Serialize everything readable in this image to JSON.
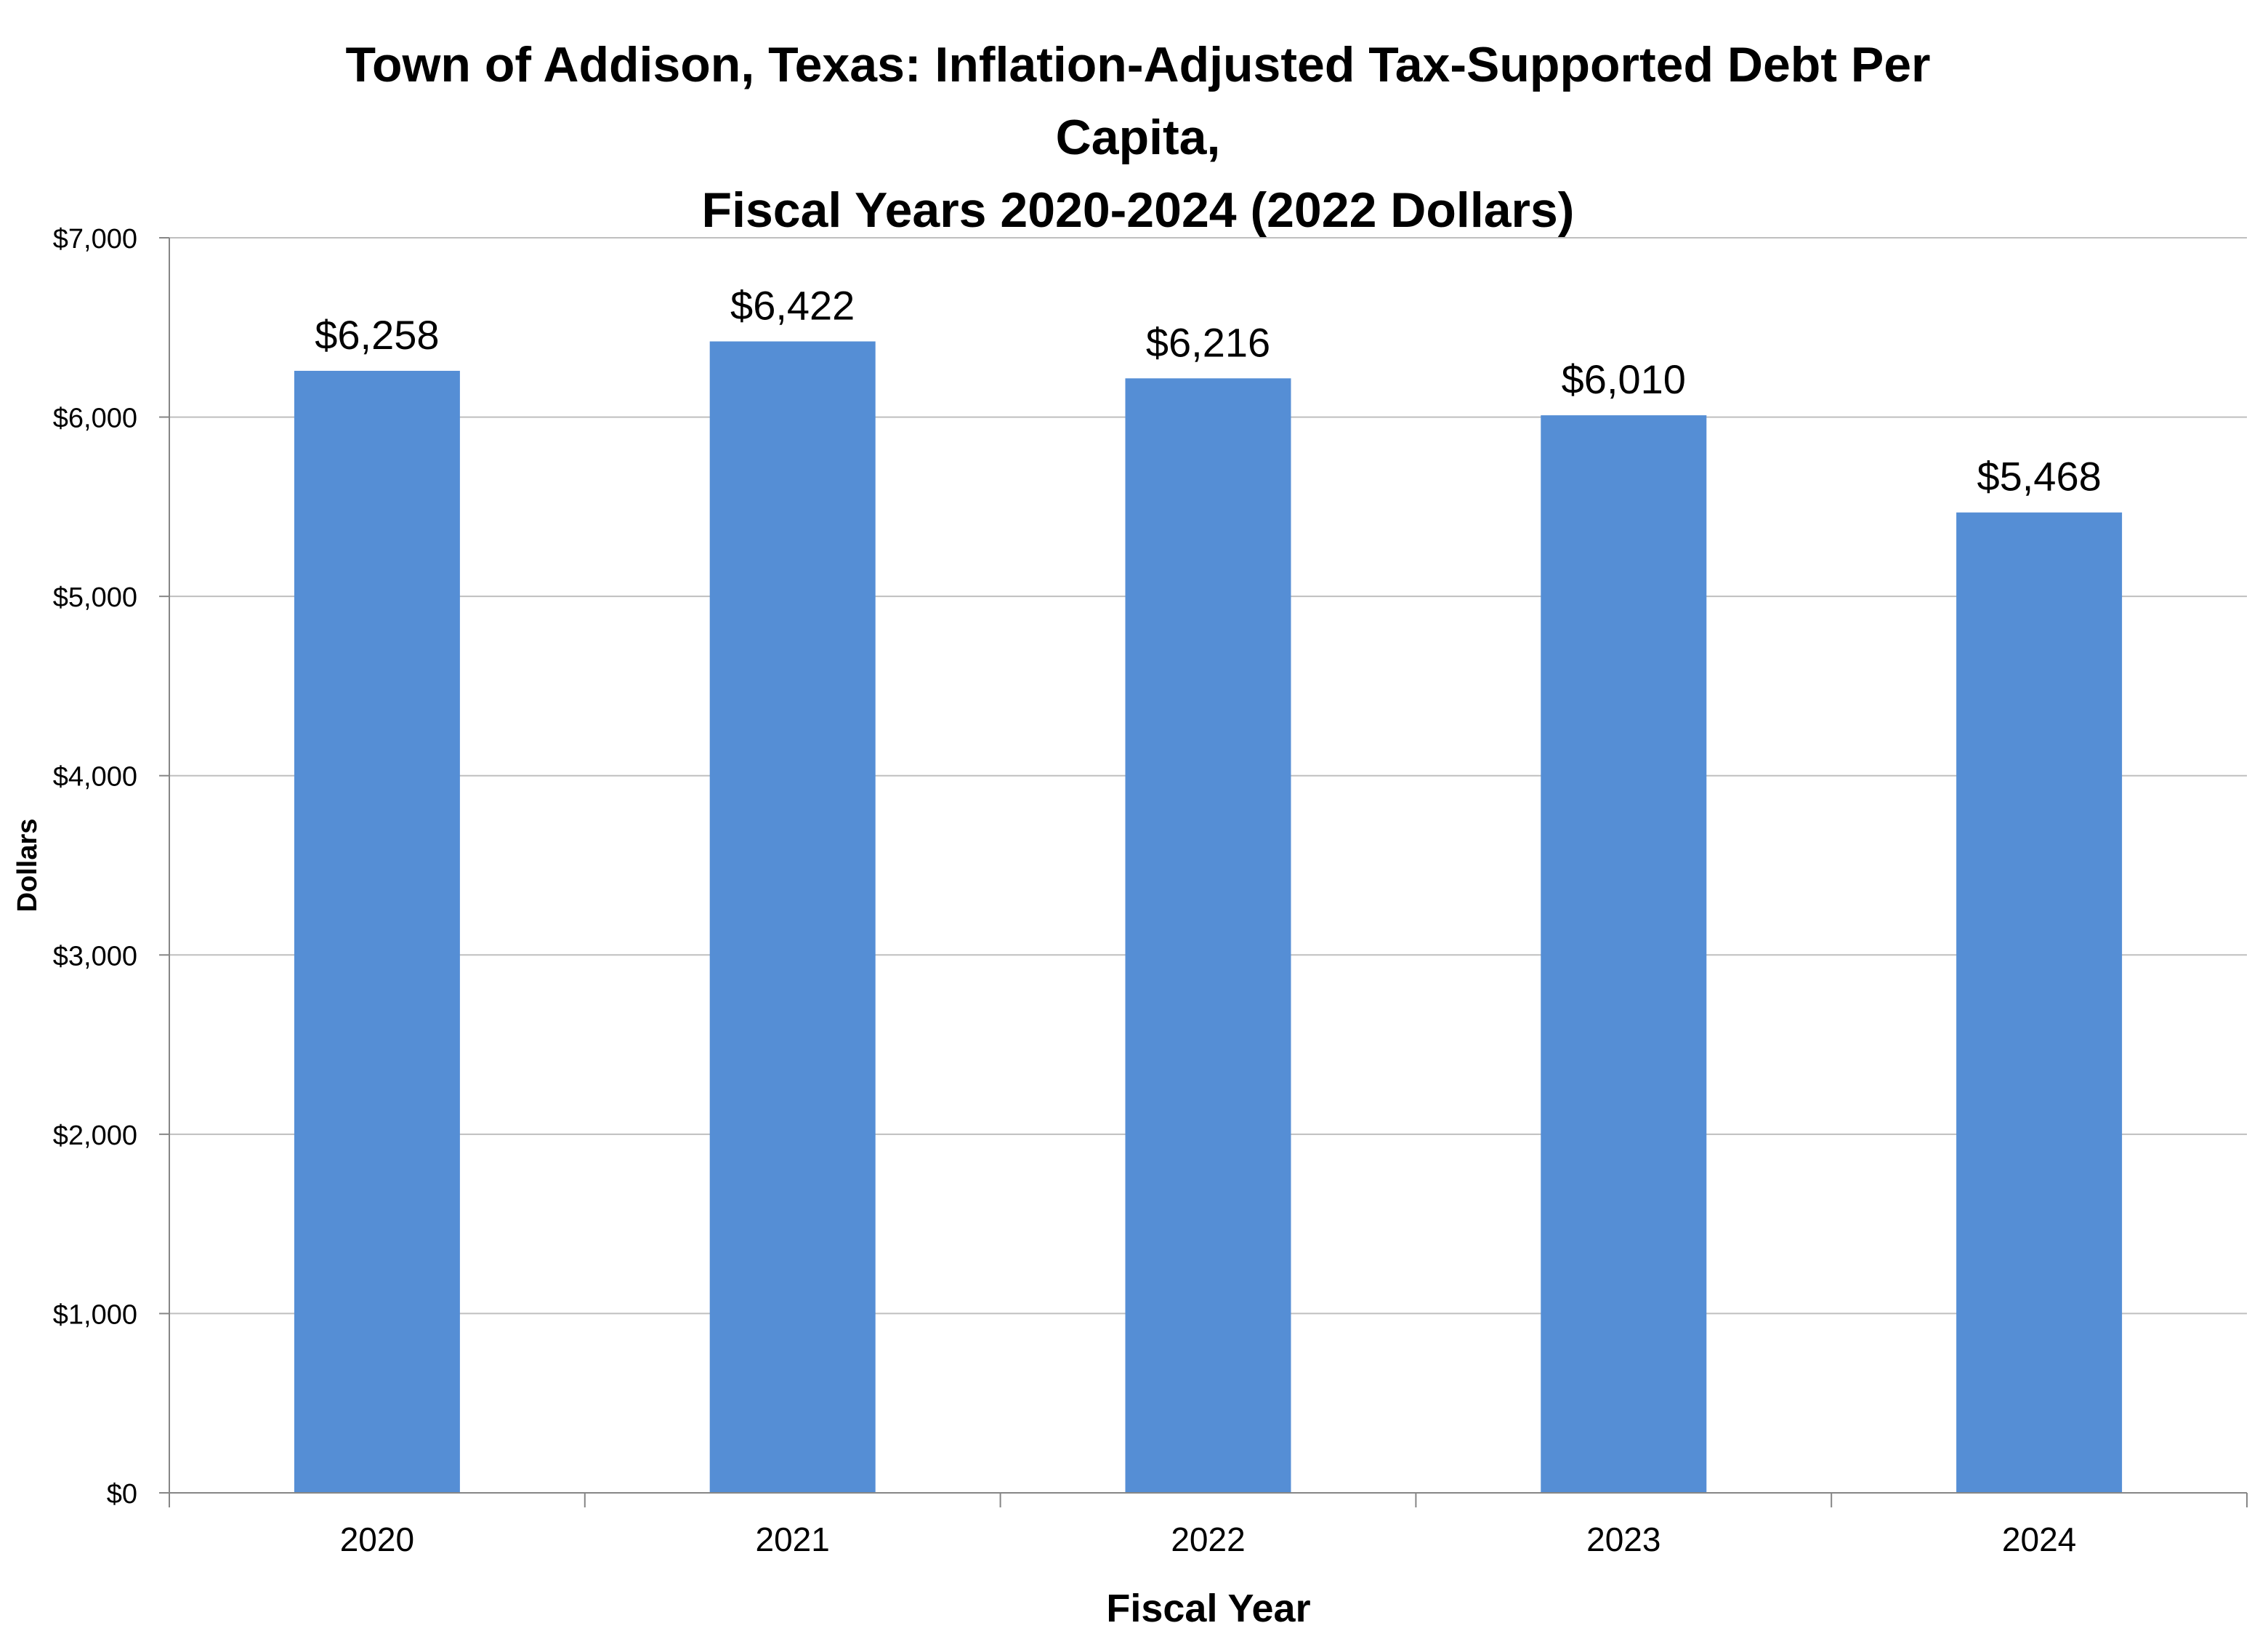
{
  "chart_data": {
    "type": "bar",
    "title_lines": [
      "Town of Addison, Texas: Inflation-Adjusted Tax-Supported Debt Per",
      "Capita,",
      "Fiscal Years 2020-2024 (2022 Dollars)"
    ],
    "xlabel": "Fiscal Year",
    "ylabel": "Dollars",
    "categories": [
      "2020",
      "2021",
      "2022",
      "2023",
      "2024"
    ],
    "values": [
      6258,
      6422,
      6216,
      6010,
      5468
    ],
    "data_labels": [
      "$6,258",
      "$6,422",
      "$6,216",
      "$6,010",
      "$5,468"
    ],
    "ylim": [
      0,
      7000
    ],
    "yticks": [
      0,
      1000,
      2000,
      3000,
      4000,
      5000,
      6000,
      7000
    ],
    "ytick_labels": [
      "$0",
      "$1,000",
      "$2,000",
      "$3,000",
      "$4,000",
      "$5,000",
      "$6,000",
      "$7,000"
    ],
    "grid": true,
    "legend": "none",
    "colors": {
      "bar": "#558ED5",
      "grid": "#BFBFBF",
      "axis": "#868686"
    }
  }
}
